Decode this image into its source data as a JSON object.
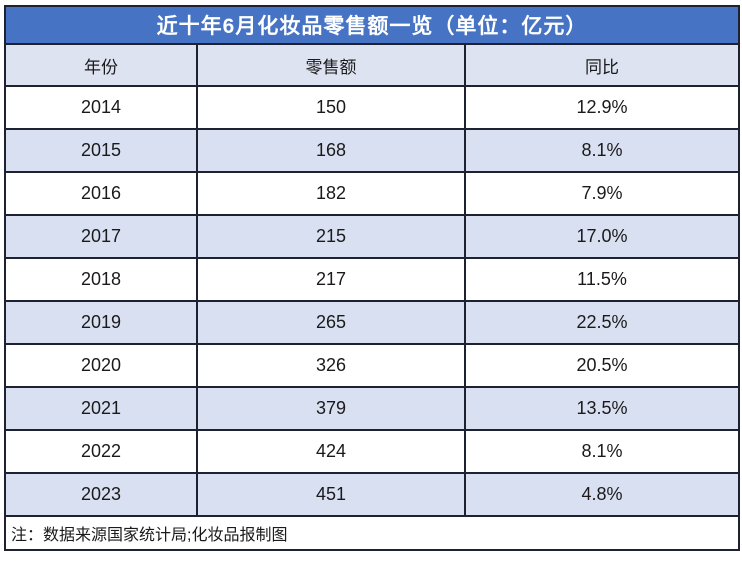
{
  "page": {
    "title_bar": "近十年6月化妆品零售额一览（单位：亿元）"
  },
  "table": {
    "headers": [
      "年份",
      "零售额",
      "同比"
    ],
    "rows": [
      {
        "year": "2014",
        "retail": "150",
        "yoy": "12.9%"
      },
      {
        "year": "2015",
        "retail": "168",
        "yoy": "8.1%"
      },
      {
        "year": "2016",
        "retail": "182",
        "yoy": "7.9%"
      },
      {
        "year": "2017",
        "retail": "215",
        "yoy": "17.0%"
      },
      {
        "year": "2018",
        "retail": "217",
        "yoy": "11.5%"
      },
      {
        "year": "2019",
        "retail": "265",
        "yoy": "22.5%"
      },
      {
        "year": "2020",
        "retail": "326",
        "yoy": "20.5%"
      },
      {
        "year": "2021",
        "retail": "379",
        "yoy": "13.5%"
      },
      {
        "year": "2022",
        "retail": "424",
        "yoy": "8.1%"
      },
      {
        "year": "2023",
        "retail": "451",
        "yoy": "4.8%"
      }
    ],
    "note": "注：数据来源国家统计局;化妆品报制图"
  },
  "colors": {
    "title_bg": "#4673c4",
    "title_text": "#ffffff",
    "header_bg": "#dee3f1",
    "stripe_bg": "#d9e0f2",
    "row_bg": "#ffffff",
    "border": "#1d2130",
    "text": "#1a1a1a"
  },
  "chart_data": {
    "type": "table",
    "title": "近十年6月化妆品零售额一览（单位：亿元）",
    "unit": "亿元",
    "columns": [
      "年份",
      "零售额",
      "同比"
    ],
    "rows": [
      [
        "2014",
        "150",
        "12.9%"
      ],
      [
        "2015",
        "168",
        "8.1%"
      ],
      [
        "2016",
        "182",
        "7.9%"
      ],
      [
        "2017",
        "215",
        "17.0%"
      ],
      [
        "2018",
        "217",
        "11.5%"
      ],
      [
        "2019",
        "265",
        "22.5%"
      ],
      [
        "2020",
        "326",
        "20.5%"
      ],
      [
        "2021",
        "379",
        "13.5%"
      ],
      [
        "2022",
        "424",
        "8.1%"
      ],
      [
        "2023",
        "451",
        "4.8%"
      ]
    ],
    "years": [
      2014,
      2015,
      2016,
      2017,
      2018,
      2019,
      2020,
      2021,
      2022,
      2023
    ],
    "retail_values": [
      150,
      168,
      182,
      215,
      217,
      265,
      326,
      379,
      424,
      451
    ],
    "yoy_percent": [
      12.9,
      8.1,
      7.9,
      17.0,
      11.5,
      22.5,
      20.5,
      13.5,
      8.1,
      4.8
    ],
    "note": "注：数据来源国家统计局;化妆品报制图"
  }
}
